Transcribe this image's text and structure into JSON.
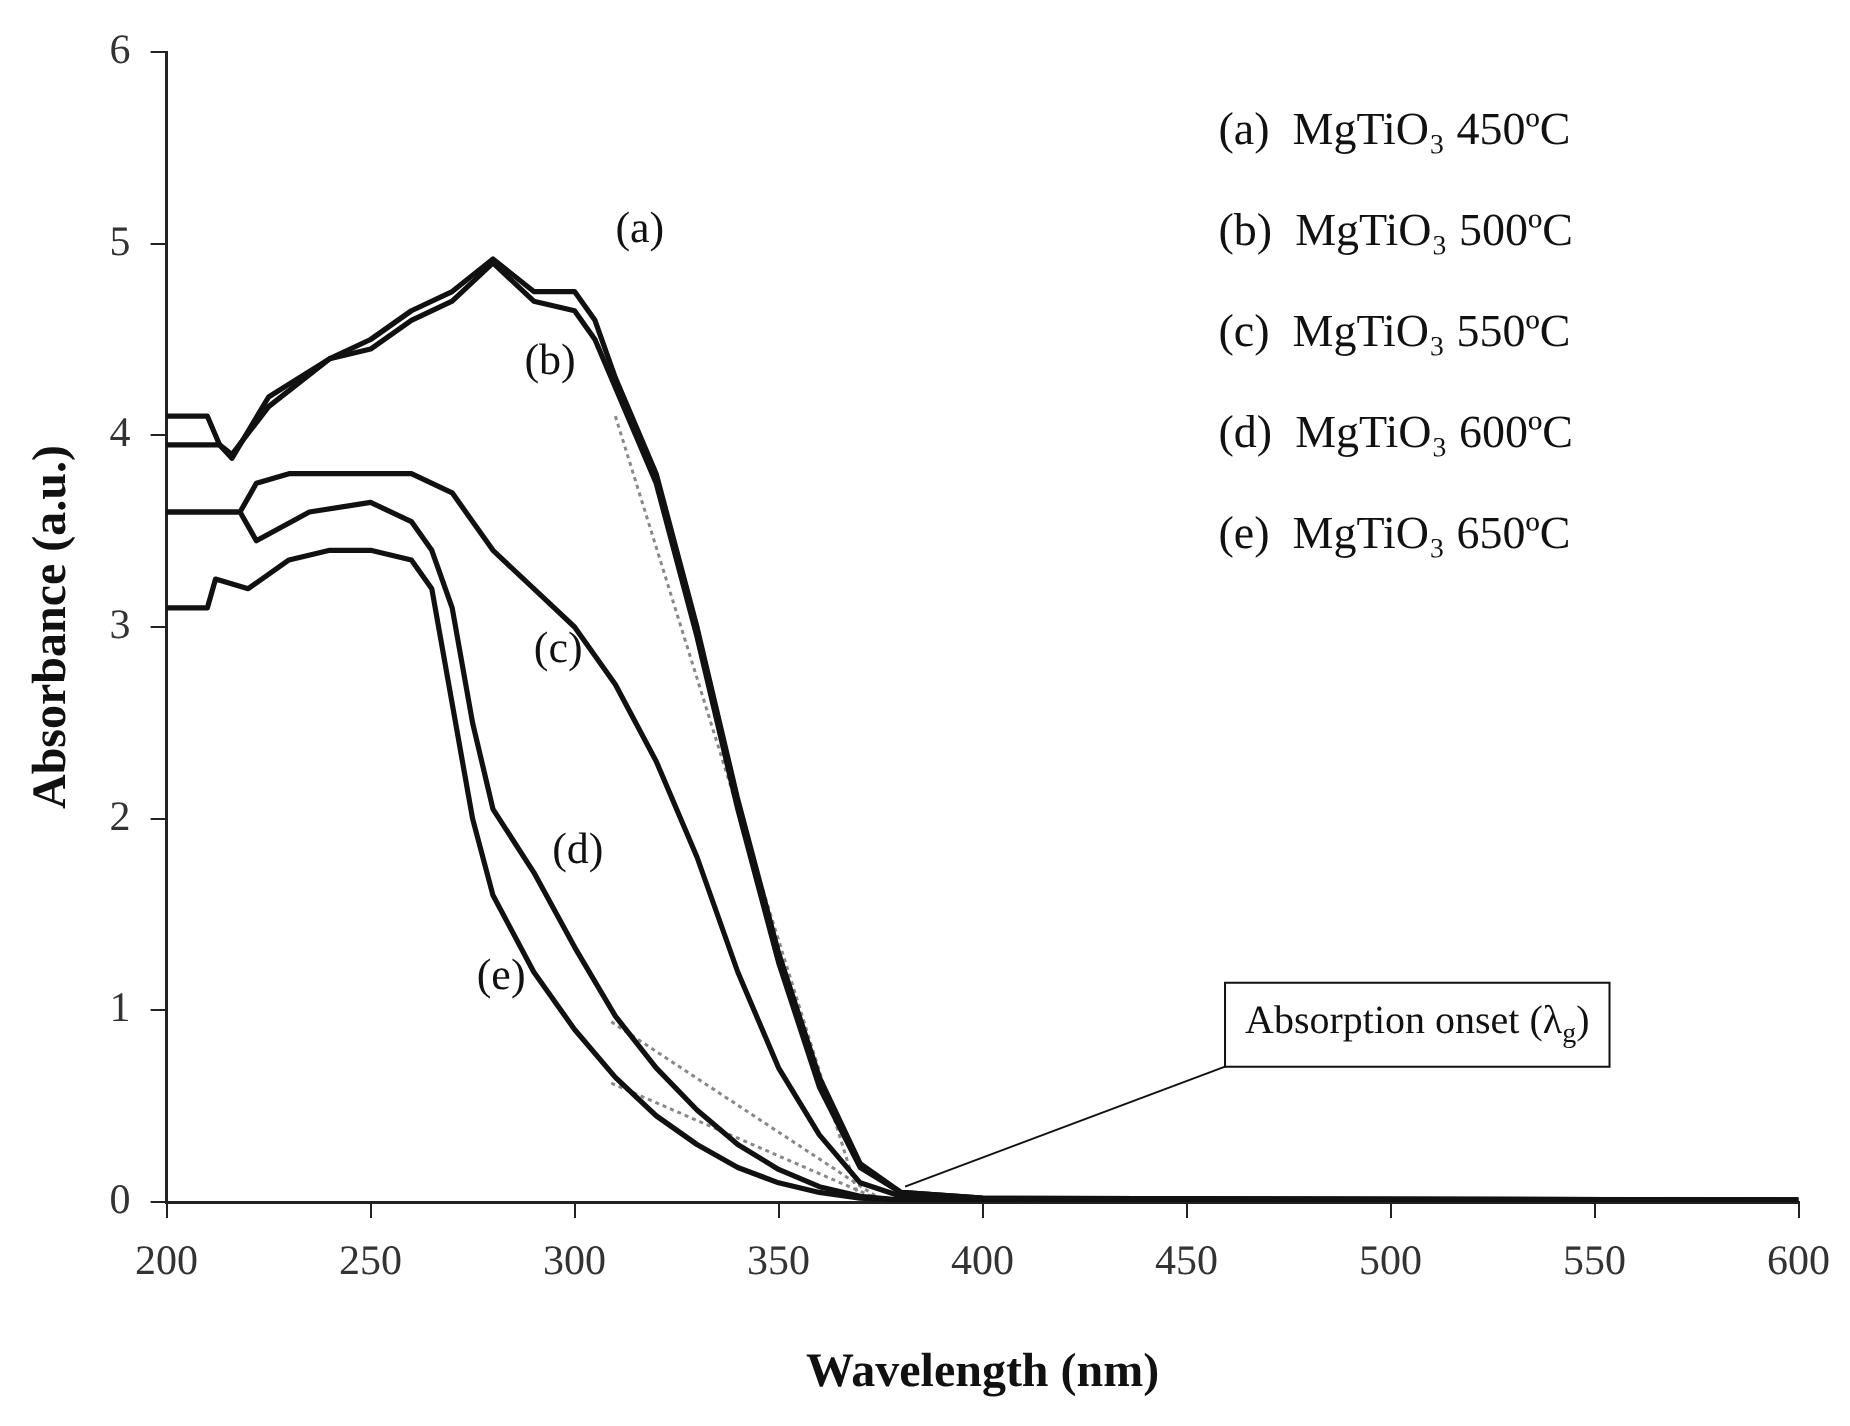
{
  "chart_data": {
    "type": "line",
    "xlabel": "Wavelength (nm)",
    "ylabel": "Absorbance (a.u.)",
    "xlim": [
      200,
      600
    ],
    "xticks": [
      200,
      250,
      300,
      350,
      400,
      450,
      500,
      550,
      600
    ],
    "ylim": [
      0,
      6
    ],
    "yticks": [
      0,
      1,
      2,
      3,
      4,
      5,
      6
    ],
    "grid": false,
    "marker": "none",
    "line_style": "solid",
    "series": [
      {
        "name": "(a)",
        "color": "#111111",
        "x": [
          200,
          210,
          210,
          213,
          216,
          225,
          240,
          250,
          260,
          270,
          280,
          290,
          300,
          305,
          310,
          320,
          330,
          340,
          350,
          360,
          370,
          380,
          400,
          600
        ],
        "values": [
          4.1,
          4.1,
          4.1,
          3.95,
          3.88,
          4.2,
          4.4,
          4.5,
          4.65,
          4.75,
          4.92,
          4.75,
          4.75,
          4.6,
          4.3,
          3.8,
          3.0,
          2.1,
          1.3,
          0.65,
          0.2,
          0.05,
          0.02,
          0.01
        ]
      },
      {
        "name": "(b)",
        "color": "#111111",
        "x": [
          200,
          213,
          216,
          225,
          240,
          250,
          260,
          270,
          280,
          290,
          300,
          305,
          310,
          320,
          330,
          340,
          350,
          360,
          370,
          380,
          400,
          600
        ],
        "values": [
          3.95,
          3.95,
          3.9,
          4.15,
          4.4,
          4.45,
          4.6,
          4.7,
          4.9,
          4.7,
          4.65,
          4.5,
          4.25,
          3.75,
          2.95,
          2.05,
          1.25,
          0.6,
          0.18,
          0.05,
          0.02,
          0.01
        ]
      },
      {
        "name": "(c)",
        "color": "#111111",
        "x": [
          200,
          218,
          222,
          230,
          240,
          250,
          260,
          270,
          280,
          290,
          300,
          310,
          320,
          330,
          340,
          350,
          360,
          370,
          380,
          400,
          600
        ],
        "values": [
          3.6,
          3.6,
          3.75,
          3.8,
          3.8,
          3.8,
          3.8,
          3.7,
          3.4,
          3.2,
          3.0,
          2.7,
          2.3,
          1.8,
          1.2,
          0.7,
          0.35,
          0.1,
          0.03,
          0.01,
          0.01
        ]
      },
      {
        "name": "(d)",
        "color": "#111111",
        "x": [
          200,
          218,
          222,
          235,
          250,
          260,
          265,
          270,
          275,
          280,
          290,
          300,
          310,
          320,
          330,
          340,
          350,
          360,
          370,
          380,
          400,
          600
        ],
        "values": [
          3.6,
          3.6,
          3.45,
          3.6,
          3.65,
          3.55,
          3.4,
          3.1,
          2.5,
          2.05,
          1.72,
          1.33,
          0.97,
          0.7,
          0.48,
          0.3,
          0.17,
          0.08,
          0.03,
          0.01,
          0.01,
          0.01
        ]
      },
      {
        "name": "(e)",
        "color": "#111111",
        "x": [
          200,
          210,
          212,
          220,
          230,
          240,
          250,
          260,
          265,
          270,
          275,
          280,
          290,
          300,
          310,
          320,
          330,
          340,
          350,
          360,
          370,
          380,
          400,
          600
        ],
        "values": [
          3.1,
          3.1,
          3.25,
          3.2,
          3.35,
          3.4,
          3.4,
          3.35,
          3.2,
          2.6,
          2.0,
          1.6,
          1.2,
          0.9,
          0.65,
          0.45,
          0.3,
          0.18,
          0.1,
          0.05,
          0.02,
          0.01,
          0.01,
          0.01
        ]
      },
      {
        "color": "#888888",
        "line_style": "dotted",
        "x": [
          310,
          370
        ],
        "values": [
          4.1,
          0
        ]
      },
      {
        "color": "#888888",
        "line_style": "dotted",
        "x": [
          309,
          376
        ],
        "values": [
          0.94,
          0
        ]
      },
      {
        "color": "#888888",
        "line_style": "dotted",
        "x": [
          309,
          376
        ],
        "values": [
          0.62,
          0
        ]
      }
    ],
    "annotations": [
      "(a)  MgTiO₃ 450ºC",
      "(b)  MgTiO₃ 500ºC",
      "(c)  MgTiO₃ 550ºC",
      "(d)  MgTiO₃ 600ºC",
      "(e)  MgTiO₃ 650ºC",
      {
        "text": "Absorption onset (λ$_{g}$)",
        "x": 381,
        "y": 0.08
      }
    ]
  }
}
